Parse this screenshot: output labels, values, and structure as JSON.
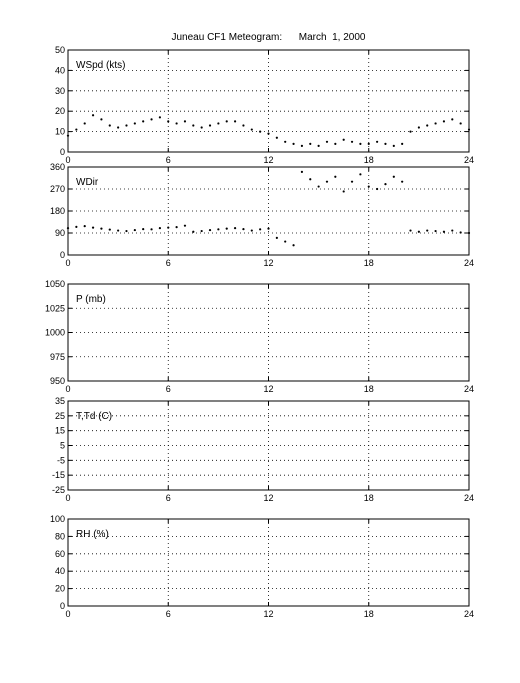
{
  "title": "Juneau CF1 Meteogram:      March  1, 2000",
  "chart_data": [
    {
      "type": "scatter",
      "label": "WSpd (kts)",
      "xlim": [
        0,
        24
      ],
      "ylim": [
        0,
        50
      ],
      "xticks": [
        "0",
        "6",
        "12",
        "18",
        "24"
      ],
      "yticks": [
        "0",
        "10",
        "20",
        "30",
        "40",
        "50"
      ],
      "grid": true,
      "x": [
        0,
        0.5,
        1,
        1.5,
        2,
        2.5,
        3,
        3.5,
        4,
        4.5,
        5,
        5.5,
        6,
        6.5,
        7,
        7.5,
        8,
        8.5,
        9,
        9.5,
        10,
        10.5,
        11,
        11.5,
        12,
        12.5,
        13,
        13.5,
        14,
        14.5,
        15,
        15.5,
        16,
        16.5,
        17,
        17.5,
        18,
        18.5,
        19,
        19.5,
        20,
        20.5,
        21,
        21.5,
        22,
        22.5,
        23,
        23.5,
        24
      ],
      "y": [
        8,
        11,
        14,
        18,
        16,
        13,
        12,
        13,
        14,
        15,
        16,
        17,
        15,
        14,
        15,
        13,
        12,
        13,
        14,
        15,
        15,
        13,
        11,
        10,
        9,
        7,
        5,
        4,
        3,
        4,
        3,
        5,
        4,
        6,
        5,
        4,
        4,
        5,
        4,
        3,
        4,
        10,
        12,
        13,
        14,
        15,
        16,
        14,
        11
      ]
    },
    {
      "type": "scatter",
      "label": "WDir",
      "xlim": [
        0,
        24
      ],
      "ylim": [
        0,
        360
      ],
      "xticks": [
        "0",
        "6",
        "12",
        "18",
        "24"
      ],
      "yticks": [
        "0",
        "90",
        "180",
        "270",
        "360"
      ],
      "grid": true,
      "x": [
        0,
        0.5,
        1,
        1.5,
        2,
        2.5,
        3,
        3.5,
        4,
        4.5,
        5,
        5.5,
        6,
        6.5,
        7,
        7.5,
        8,
        8.5,
        9,
        9.5,
        10,
        10.5,
        11,
        11.5,
        12,
        12.5,
        13,
        13.5,
        14,
        14.5,
        15,
        15.5,
        16,
        16.5,
        17,
        17.5,
        18,
        18.5,
        19,
        19.5,
        20,
        20.5,
        21,
        21.5,
        22,
        22.5,
        23,
        23.5,
        24
      ],
      "y": [
        110,
        115,
        118,
        112,
        108,
        104,
        100,
        98,
        102,
        106,
        105,
        110,
        112,
        114,
        120,
        95,
        98,
        102,
        105,
        108,
        110,
        106,
        100,
        105,
        108,
        70,
        55,
        40,
        340,
        310,
        280,
        300,
        320,
        260,
        300,
        330,
        280,
        270,
        290,
        320,
        300,
        100,
        95,
        100,
        98,
        95,
        100,
        92,
        90
      ]
    },
    {
      "type": "scatter",
      "label": "P (mb)",
      "xlim": [
        0,
        24
      ],
      "ylim": [
        950,
        1050
      ],
      "xticks": [
        "0",
        "6",
        "12",
        "18",
        "24"
      ],
      "yticks": [
        "950",
        "975",
        "1000",
        "1025",
        "1050"
      ],
      "grid": true,
      "x": [],
      "y": []
    },
    {
      "type": "scatter",
      "label": "T,Td (C)",
      "xlim": [
        0,
        24
      ],
      "ylim": [
        -25,
        35
      ],
      "xticks": [
        "0",
        "6",
        "12",
        "18",
        "24"
      ],
      "yticks": [
        "-25",
        "-15",
        "-5",
        "5",
        "15",
        "25",
        "35"
      ],
      "grid": true,
      "x": [],
      "y": []
    },
    {
      "type": "scatter",
      "label": "RH (%)",
      "xlim": [
        0,
        24
      ],
      "ylim": [
        0,
        100
      ],
      "xticks": [
        "0",
        "6",
        "12",
        "18",
        "24"
      ],
      "yticks": [
        "0",
        "20",
        "40",
        "60",
        "80",
        "100"
      ],
      "grid": true,
      "x": [],
      "y": []
    }
  ]
}
